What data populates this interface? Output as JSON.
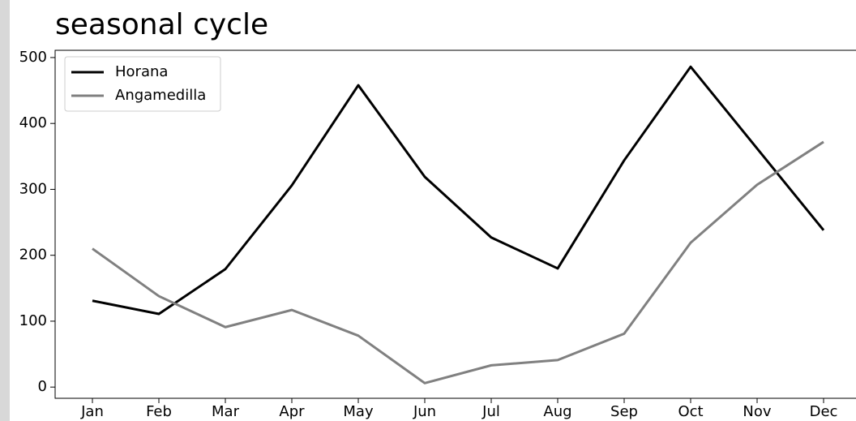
{
  "chart_data": {
    "type": "line",
    "title": "seasonal cycle",
    "categories": [
      "Jan",
      "Feb",
      "Mar",
      "Apr",
      "May",
      "Jun",
      "Jul",
      "Aug",
      "Sep",
      "Oct",
      "Nov",
      "Dec"
    ],
    "series": [
      {
        "name": "Horana",
        "color": "#000000",
        "values": [
          131,
          111,
          179,
          306,
          458,
          319,
          227,
          180,
          344,
          486,
          362,
          238
        ]
      },
      {
        "name": "Angamedilla",
        "color": "#808080",
        "values": [
          210,
          138,
          91,
          117,
          78,
          6,
          33,
          41,
          81,
          219,
          307,
          372
        ]
      }
    ],
    "ylim": [
      -17,
      511
    ],
    "yticks": [
      0,
      100,
      200,
      300,
      400,
      500
    ],
    "grid": false,
    "legend": "upper left"
  }
}
